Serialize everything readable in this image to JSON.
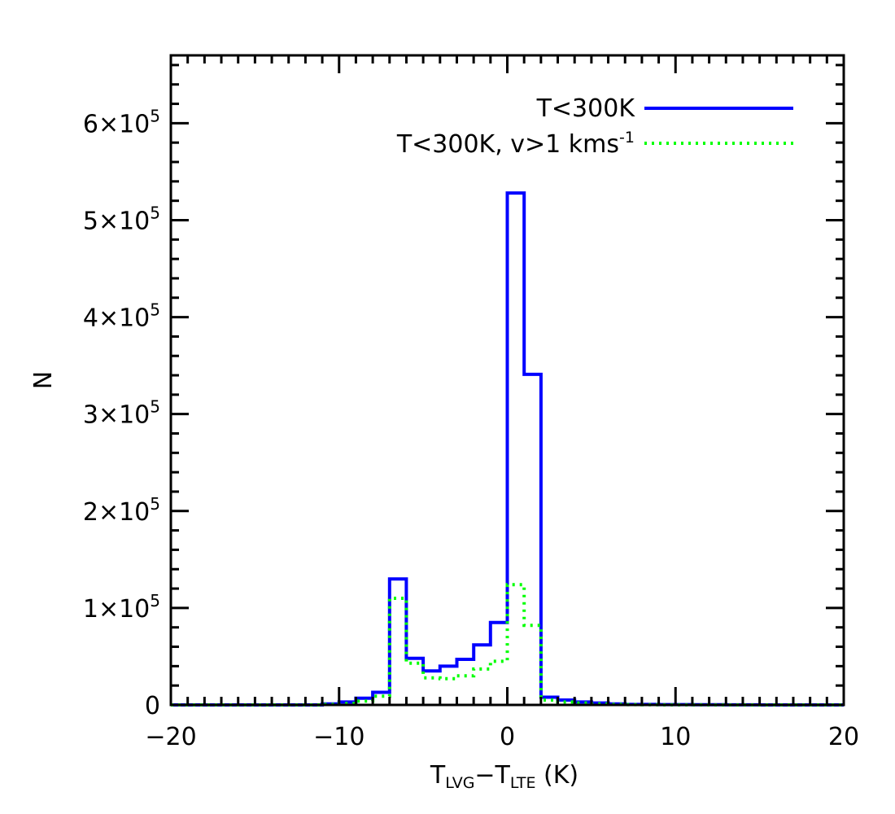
{
  "chart_data": {
    "type": "histogram",
    "title": "",
    "xlabel": {
      "parts": [
        {
          "text": "T",
          "role": "base"
        },
        {
          "text": "LVG",
          "role": "sub"
        },
        {
          "text": "−T",
          "role": "base"
        },
        {
          "text": "LTE",
          "role": "sub"
        },
        {
          "text": " (K)",
          "role": "base"
        }
      ]
    },
    "ylabel": "N",
    "xlim": [
      -20,
      20
    ],
    "ylim": [
      0,
      670000
    ],
    "xticks": [
      {
        "value": -20,
        "label": "−20"
      },
      {
        "value": -10,
        "label": "−10"
      },
      {
        "value": 0,
        "label": "0"
      },
      {
        "value": 10,
        "label": "10"
      },
      {
        "value": 20,
        "label": "20"
      }
    ],
    "yticks": [
      {
        "value": 0,
        "mantissa": "0",
        "times": "",
        "exp": ""
      },
      {
        "value": 100000,
        "mantissa": "1",
        "times": "×10",
        "exp": "5"
      },
      {
        "value": 200000,
        "mantissa": "2",
        "times": "×10",
        "exp": "5"
      },
      {
        "value": 300000,
        "mantissa": "3",
        "times": "×10",
        "exp": "5"
      },
      {
        "value": 400000,
        "mantissa": "4",
        "times": "×10",
        "exp": "5"
      },
      {
        "value": 500000,
        "mantissa": "5",
        "times": "×10",
        "exp": "5"
      },
      {
        "value": 600000,
        "mantissa": "6",
        "times": "×10",
        "exp": "5"
      }
    ],
    "bin_edges": [
      -20,
      -19,
      -18,
      -17,
      -16,
      -15,
      -14,
      -13,
      -12,
      -11,
      -10,
      -9,
      -8,
      -7,
      -6,
      -5,
      -4,
      -3,
      -2,
      -1,
      0,
      1,
      2,
      3,
      4,
      5,
      6,
      7,
      8,
      9,
      10,
      11,
      12,
      13,
      14,
      15,
      16,
      17,
      18,
      19,
      20
    ],
    "series": [
      {
        "name": "T<300K",
        "style": "solid",
        "color": "#0000ff",
        "values": [
          0,
          0,
          0,
          0,
          0,
          0,
          0,
          0,
          0,
          1000,
          3000,
          7000,
          13000,
          130000,
          48000,
          35000,
          40000,
          47000,
          62000,
          85000,
          528000,
          341000,
          8000,
          5000,
          3000,
          2000,
          1000,
          500,
          500,
          300,
          300,
          200,
          200,
          100,
          100,
          0,
          0,
          0,
          0,
          0
        ]
      },
      {
        "name": "T<300K, v>1 kms",
        "name_sup": "-1",
        "style": "dotted",
        "color": "#00ff00",
        "values": [
          0,
          0,
          0,
          0,
          0,
          0,
          0,
          0,
          0,
          500,
          1500,
          4000,
          9000,
          110000,
          43000,
          28000,
          27000,
          30000,
          37000,
          45000,
          124000,
          82000,
          5000,
          3000,
          2000,
          1000,
          500,
          300,
          200,
          100,
          100,
          100,
          0,
          0,
          0,
          0,
          0,
          0,
          0,
          0
        ]
      }
    ],
    "legend": {
      "position": "top-right"
    }
  }
}
